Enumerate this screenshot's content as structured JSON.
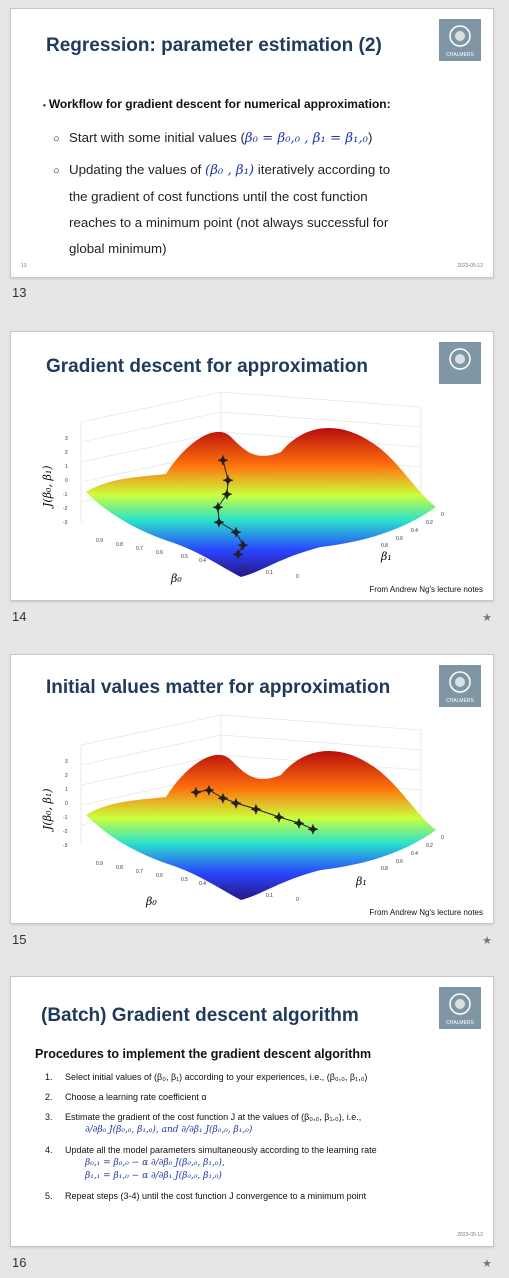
{
  "slides": [
    {
      "number": "13",
      "title": "Regression: parameter estimation (2)",
      "bullet": "Workflow for gradient descent for numerical approximation:",
      "subs": [
        {
          "text": "Start with some initial values (",
          "math": "β₀ = β₀,₀ , β₁ = β₁,₀",
          "tail": ")"
        },
        {
          "text": "Updating the values of ",
          "math": "(β₀ , β₁)",
          "tail": " iteratively according to",
          "cont": [
            "the gradient of cost functions until the cost function",
            "reaches to a minimum point (not always successful for",
            "global minimum)"
          ]
        }
      ],
      "footer_left": "13",
      "footer_right": "2023-05-12"
    },
    {
      "number": "14",
      "title": "Gradient descent for approximation",
      "caption": "From Andrew Ng's lecture notes",
      "zlabel": "J(β₀, β₁)",
      "xlabel": "β₀",
      "ylabel": "β₁"
    },
    {
      "number": "15",
      "title": "Initial values matter for approximation",
      "caption": "From Andrew Ng's lecture notes",
      "zlabel": "J(β₀, β₁)",
      "xlabel": "β₀",
      "ylabel": "β₁"
    },
    {
      "number": "16",
      "title": "(Batch) Gradient descent algorithm",
      "procedures": "Procedures to implement the gradient descent algorithm",
      "steps": [
        {
          "n": "1.",
          "text": "Select initial values of (β₀, β₁) according to your experiences, i.e., (β₀,₀, β₁,₀)"
        },
        {
          "n": "2.",
          "text": "Choose a learning rate coefficient α"
        },
        {
          "n": "3.",
          "text": "Estimate the gradient of the cost function J at the values of (β₀,₀, β₁,₀), i.e.,",
          "math": "∂/∂β₀ J(β₀,₀, β₁,₀), and ∂/∂β₁ J(β₀,₀, β₁,₀)"
        },
        {
          "n": "4.",
          "text": "Update all the model parameters simultaneously according to the learning rate",
          "math": "β₀,₁ = β₀,₀ − α ∂/∂β₀ J(β₀,₀, β₁,₀),",
          "math2": "β₁,₁ = β₁,₀ − α ∂/∂β₁ J(β₀,₀, β₁,₀)"
        },
        {
          "n": "5.",
          "text": "Repeat steps (3-4) until the cost function J convergence to a minimum point"
        }
      ],
      "footer_right": "2023-05-12"
    }
  ],
  "star": "★",
  "logo_text": "CHALMERS"
}
